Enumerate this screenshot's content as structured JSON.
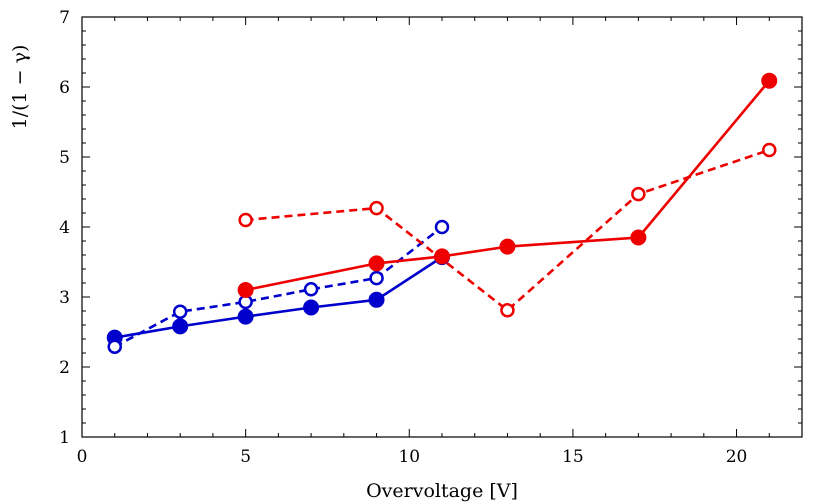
{
  "chart_data": {
    "type": "line",
    "xlabel": "Overvoltage  [V]",
    "ylabel": "1/(1 − γ)",
    "xlim": [
      0,
      22
    ],
    "ylim": [
      1,
      7
    ],
    "xticks": [
      0,
      5,
      10,
      15,
      20
    ],
    "yticks": [
      1,
      2,
      3,
      4,
      5,
      6,
      7
    ],
    "grid": false,
    "series": [
      {
        "color": "#0000cc",
        "style": "solid",
        "marker": "filled-circle",
        "x": [
          1,
          3,
          5,
          7,
          9,
          11
        ],
        "y": [
          2.42,
          2.58,
          2.72,
          2.85,
          2.96,
          3.57
        ]
      },
      {
        "color": "#0000cc",
        "style": "dashed",
        "marker": "open-circle",
        "x": [
          1,
          3,
          5,
          7,
          9,
          11
        ],
        "y": [
          2.29,
          2.79,
          2.93,
          3.11,
          3.27,
          4.0
        ]
      },
      {
        "color": "#ee0000",
        "style": "solid",
        "marker": "filled-circle",
        "x": [
          5,
          9,
          11,
          13,
          17,
          21
        ],
        "y": [
          3.1,
          3.48,
          3.58,
          3.72,
          3.85,
          6.09
        ]
      },
      {
        "color": "#ee0000",
        "style": "dashed",
        "marker": "open-circle",
        "x": [
          5,
          9,
          13,
          17,
          21
        ],
        "y": [
          4.1,
          4.27,
          2.81,
          4.47,
          5.1
        ]
      }
    ]
  }
}
